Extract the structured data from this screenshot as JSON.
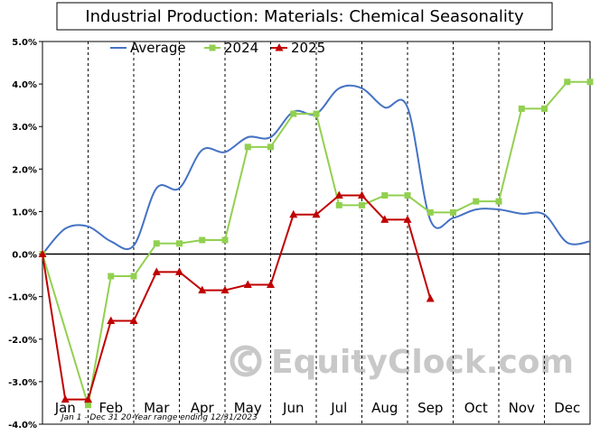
{
  "chart_data": {
    "type": "line",
    "title": "Industrial Production: Materials: Chemical Seasonality",
    "x_categories": [
      "Jan",
      "Feb",
      "Mar",
      "Apr",
      "May",
      "Jun",
      "Jul",
      "Aug",
      "Sep",
      "Oct",
      "Nov",
      "Dec"
    ],
    "y_tick_labels": [
      "5.0%",
      "4.0%",
      "3.0%",
      "2.0%",
      "1.0%",
      "0.0%",
      "-1.0%",
      "-2.0%",
      "-3.0%",
      "-4.0%"
    ],
    "ylim": [
      -4.0,
      5.0
    ],
    "grid": "vertical dashed lines between months, solid zero line",
    "legend_position": "top-left",
    "footnote": "Jan 1 - Dec 31 20-Year range ending 12/31/2023",
    "watermark": "EquityClock.com",
    "series": [
      {
        "name": "Average",
        "color": "#4472c4",
        "style": "smooth line, no markers",
        "points": [
          [
            0.0,
            0.0
          ],
          [
            0.25,
            0.6
          ],
          [
            0.5,
            0.65
          ],
          [
            0.75,
            0.3
          ],
          [
            1.0,
            0.2
          ],
          [
            1.25,
            1.55
          ],
          [
            1.5,
            1.55
          ],
          [
            1.75,
            2.45
          ],
          [
            2.0,
            2.4
          ],
          [
            2.25,
            2.75
          ],
          [
            2.5,
            2.75
          ],
          [
            2.75,
            3.35
          ],
          [
            3.0,
            3.3
          ],
          [
            3.25,
            3.9
          ],
          [
            3.5,
            3.9
          ],
          [
            3.75,
            3.45
          ],
          [
            4.0,
            3.45
          ],
          [
            4.25,
            0.8
          ],
          [
            4.5,
            0.85
          ],
          [
            4.75,
            1.05
          ],
          [
            5.0,
            1.05
          ],
          [
            5.25,
            0.95
          ],
          [
            5.5,
            0.93
          ],
          [
            5.75,
            0.27
          ],
          [
            6.0,
            0.3
          ]
        ]
      },
      {
        "name": "2024",
        "color": "#92d050",
        "style": "line with square markers",
        "points": [
          [
            0.0,
            0.0
          ],
          [
            0.5,
            -3.55
          ],
          [
            0.75,
            -0.52
          ],
          [
            1.0,
            -0.52
          ],
          [
            1.25,
            0.25
          ],
          [
            1.5,
            0.25
          ],
          [
            1.75,
            0.33
          ],
          [
            2.0,
            0.33
          ],
          [
            2.25,
            2.52
          ],
          [
            2.5,
            2.52
          ],
          [
            2.75,
            3.3
          ],
          [
            3.0,
            3.3
          ],
          [
            3.25,
            1.15
          ],
          [
            3.5,
            1.15
          ],
          [
            3.75,
            1.38
          ],
          [
            4.0,
            1.38
          ],
          [
            4.25,
            0.98
          ],
          [
            4.5,
            0.98
          ],
          [
            4.75,
            1.24
          ],
          [
            5.0,
            1.24
          ],
          [
            5.25,
            3.42
          ],
          [
            5.5,
            3.42
          ],
          [
            5.75,
            4.05
          ],
          [
            6.0,
            4.05
          ]
        ]
      },
      {
        "name": "2025",
        "color": "#c00000",
        "style": "line with triangle markers",
        "points": [
          [
            0.0,
            0.0
          ],
          [
            0.25,
            -3.42
          ],
          [
            0.5,
            -3.42
          ],
          [
            0.75,
            -1.57
          ],
          [
            1.0,
            -1.57
          ],
          [
            1.25,
            -0.42
          ],
          [
            1.5,
            -0.42
          ],
          [
            1.75,
            -0.85
          ],
          [
            2.0,
            -0.85
          ],
          [
            2.25,
            -0.72
          ],
          [
            2.5,
            -0.72
          ],
          [
            2.75,
            0.93
          ],
          [
            3.0,
            0.93
          ],
          [
            3.25,
            1.38
          ],
          [
            3.5,
            1.38
          ],
          [
            3.75,
            0.81
          ],
          [
            4.0,
            0.81
          ],
          [
            4.25,
            -1.05
          ]
        ]
      }
    ]
  }
}
